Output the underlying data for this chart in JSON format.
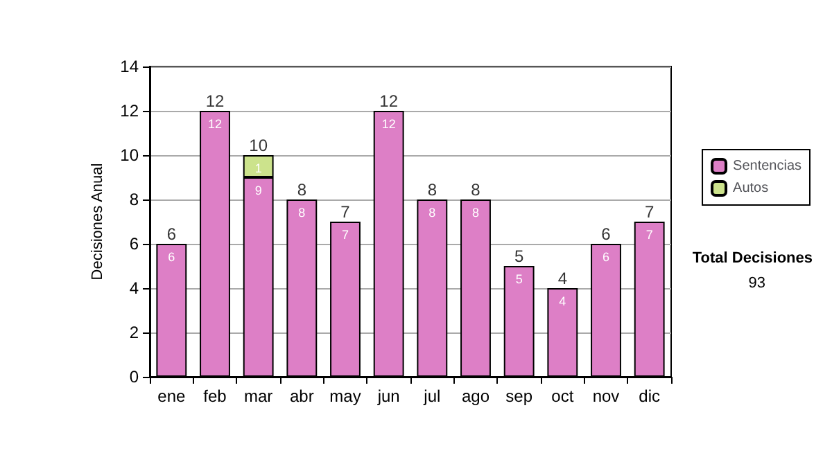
{
  "chart_data": {
    "type": "bar",
    "stacked": true,
    "ylabel": "Decisiones Anual",
    "categories": [
      "ene",
      "feb",
      "mar",
      "abr",
      "may",
      "jun",
      "jul",
      "ago",
      "sep",
      "oct",
      "nov",
      "dic"
    ],
    "series": [
      {
        "name": "Sentencias",
        "color": "#dd7fc6",
        "values": [
          6,
          12,
          9,
          8,
          7,
          12,
          8,
          8,
          5,
          4,
          6,
          7
        ],
        "value_labels": [
          "6",
          "12",
          "9",
          "8",
          "7",
          "12",
          "8",
          "8",
          "5",
          "4",
          "6",
          "7"
        ]
      },
      {
        "name": "Autos",
        "color": "#cce38c",
        "values": [
          0,
          0,
          1,
          0,
          0,
          0,
          0,
          0,
          0,
          0,
          0,
          0
        ],
        "value_labels": [
          null,
          null,
          "1",
          null,
          null,
          null,
          null,
          null,
          null,
          null,
          null,
          null
        ]
      }
    ],
    "totals": [
      "6",
      "12",
      "10",
      "8",
      "7",
      "12",
      "8",
      "8",
      "5",
      "4",
      "6",
      "7"
    ],
    "ylim": [
      0,
      14
    ],
    "yticks": [
      0,
      2,
      4,
      6,
      8,
      10,
      12,
      14
    ],
    "grid": "y",
    "legend": "right",
    "annotations": [
      "Total Decisiones",
      "93"
    ]
  }
}
